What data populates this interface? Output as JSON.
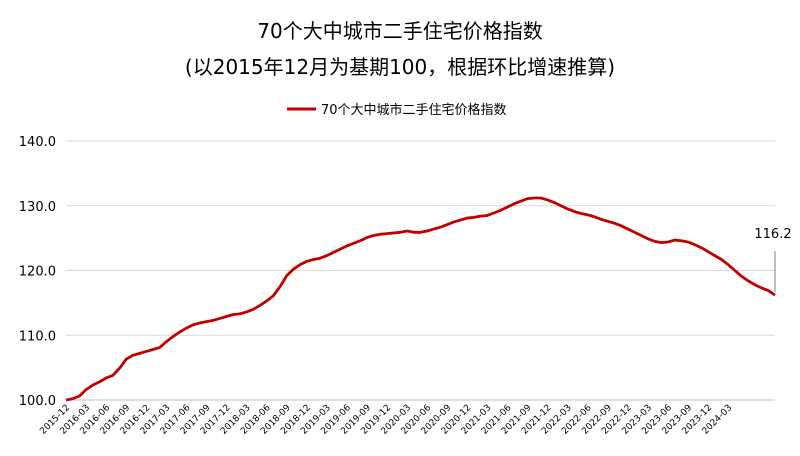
{
  "chart_data": {
    "type": "line",
    "title": "70个大中城市二手住宅价格指数",
    "subtitle": "(以2015年12月为基期100，根据环比增速推算)",
    "legend_position": "top",
    "grid": true,
    "ylim": [
      100,
      140
    ],
    "yticks": [
      "100.0",
      "110.0",
      "120.0",
      "130.0",
      "140.0"
    ],
    "xticks": [
      "2015-12",
      "2016-03",
      "2016-06",
      "2016-09",
      "2016-12",
      "2017-03",
      "2017-06",
      "2017-09",
      "2017-12",
      "2018-03",
      "2018-06",
      "2018-09",
      "2018-12",
      "2019-03",
      "2019-06",
      "2019-09",
      "2019-12",
      "2020-03",
      "2020-06",
      "2020-09",
      "2020-12",
      "2021-03",
      "2021-06",
      "2021-09",
      "2021-12",
      "2022-03",
      "2022-06",
      "2022-09",
      "2022-12",
      "2023-03",
      "2023-06",
      "2023-09",
      "2023-12",
      "2024-03"
    ],
    "series_color": "#C00000",
    "end_label": "116.2",
    "series": [
      {
        "name": "70个大中城市二手住宅价格指数",
        "values": [
          100.0,
          100.2,
          100.6,
          101.6,
          102.3,
          102.8,
          103.4,
          103.8,
          104.9,
          106.3,
          106.9,
          107.2,
          107.5,
          107.8,
          108.1,
          109.0,
          109.8,
          110.5,
          111.1,
          111.6,
          111.9,
          112.1,
          112.3,
          112.6,
          112.9,
          113.2,
          113.3,
          113.6,
          114.0,
          114.6,
          115.3,
          116.1,
          117.5,
          119.2,
          120.2,
          120.9,
          121.4,
          121.7,
          121.9,
          122.3,
          122.8,
          123.3,
          123.8,
          124.2,
          124.6,
          125.1,
          125.4,
          125.6,
          125.7,
          125.8,
          125.9,
          126.1,
          125.9,
          125.9,
          126.1,
          126.4,
          126.7,
          127.1,
          127.5,
          127.8,
          128.1,
          128.2,
          128.4,
          128.5,
          128.9,
          129.3,
          129.8,
          130.3,
          130.7,
          131.1,
          131.2,
          131.2,
          130.9,
          130.5,
          130.0,
          129.5,
          129.1,
          128.8,
          128.6,
          128.3,
          127.9,
          127.6,
          127.3,
          126.9,
          126.4,
          125.9,
          125.4,
          124.9,
          124.5,
          124.3,
          124.4,
          124.7,
          124.6,
          124.4,
          124.0,
          123.5,
          122.9,
          122.3,
          121.7,
          120.9,
          120.0,
          119.1,
          118.4,
          117.8,
          117.3,
          116.9,
          116.2
        ]
      }
    ]
  }
}
